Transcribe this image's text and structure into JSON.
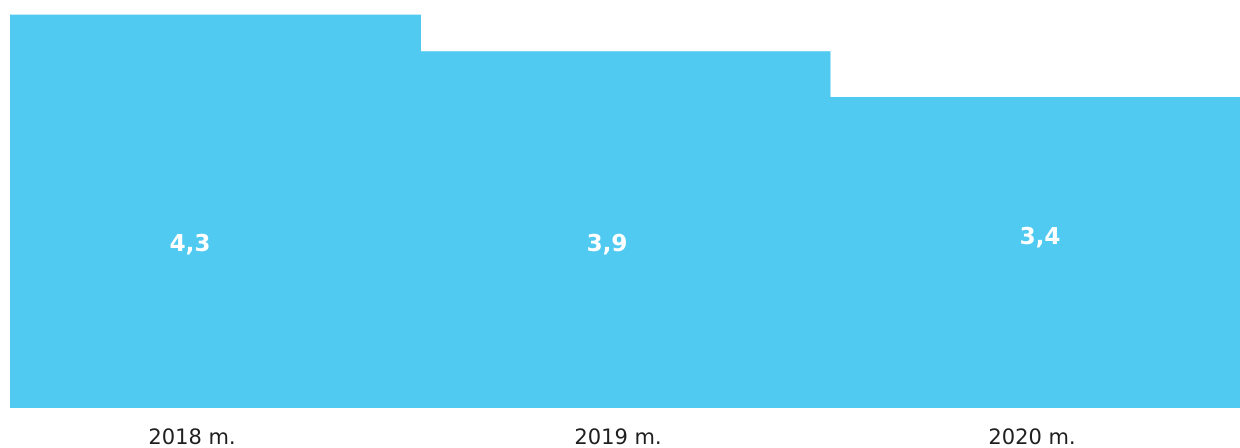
{
  "chart_data": {
    "type": "bar",
    "categories": [
      "2018 m.",
      "2019 m.",
      "2020 m."
    ],
    "values": [
      4.3,
      3.9,
      3.4
    ],
    "value_labels": [
      "4,3",
      "3,9",
      "3,4"
    ],
    "title": "",
    "xlabel": "",
    "ylabel": "",
    "ylim": [
      0,
      4.46
    ],
    "grid": false,
    "bar_color": "#51CAF2",
    "label_color": "#FFFFFF",
    "category_label_color": "#1F1F1F"
  }
}
